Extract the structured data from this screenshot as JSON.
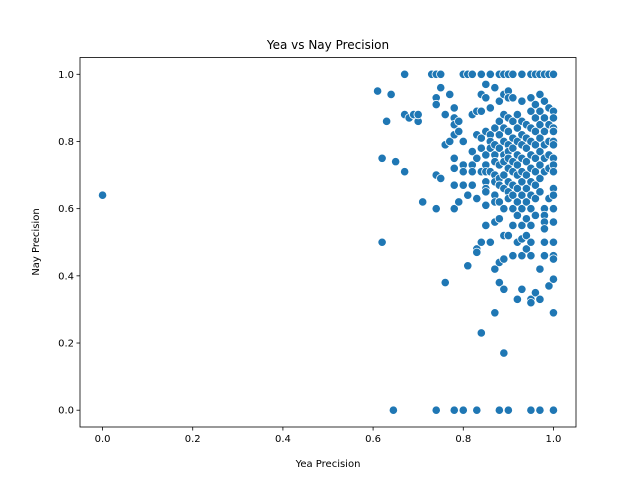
{
  "chart_data": {
    "type": "scatter",
    "title": "Yea vs Nay Precision",
    "xlabel": "Yea Precision",
    "ylabel": "Nay Precision",
    "xlim": [
      -0.05,
      1.05
    ],
    "ylim": [
      -0.05,
      1.05
    ],
    "xticks": [
      0.0,
      0.2,
      0.4,
      0.6,
      0.8,
      1.0
    ],
    "yticks": [
      0.0,
      0.2,
      0.4,
      0.6,
      0.8,
      1.0
    ],
    "xtick_labels": [
      "0.0",
      "0.2",
      "0.4",
      "0.6",
      "0.8",
      "1.0"
    ],
    "ytick_labels": [
      "0.0",
      "0.2",
      "0.4",
      "0.6",
      "0.8",
      "1.0"
    ],
    "grid": false,
    "marker_color": "#1f77b4",
    "marker_edge_color": "#ffffff",
    "series": [
      {
        "points": [
          [
            0.0,
            0.64
          ],
          [
            0.61,
            0.95
          ],
          [
            0.62,
            0.75
          ],
          [
            0.62,
            0.5
          ],
          [
            0.63,
            0.86
          ],
          [
            0.64,
            0.94
          ],
          [
            0.645,
            0.0
          ],
          [
            0.65,
            0.74
          ],
          [
            0.67,
            1.0
          ],
          [
            0.67,
            0.88
          ],
          [
            0.67,
            0.71
          ],
          [
            0.68,
            0.87
          ],
          [
            0.69,
            0.88
          ],
          [
            0.7,
            0.86
          ],
          [
            0.7,
            0.88
          ],
          [
            0.71,
            0.62
          ],
          [
            0.73,
            1.0
          ],
          [
            0.74,
            1.0
          ],
          [
            0.74,
            0.93
          ],
          [
            0.74,
            0.91
          ],
          [
            0.74,
            0.7
          ],
          [
            0.74,
            0.6
          ],
          [
            0.74,
            0.0
          ],
          [
            0.75,
            1.0
          ],
          [
            0.75,
            0.96
          ],
          [
            0.75,
            0.69
          ],
          [
            0.76,
            0.88
          ],
          [
            0.76,
            0.79
          ],
          [
            0.76,
            0.38
          ],
          [
            0.77,
            0.94
          ],
          [
            0.77,
            0.8
          ],
          [
            0.78,
            0.9
          ],
          [
            0.78,
            0.87
          ],
          [
            0.78,
            0.85
          ],
          [
            0.78,
            0.82
          ],
          [
            0.78,
            0.75
          ],
          [
            0.78,
            0.72
          ],
          [
            0.78,
            0.67
          ],
          [
            0.78,
            0.6
          ],
          [
            0.78,
            0.0
          ],
          [
            0.79,
            0.86
          ],
          [
            0.79,
            0.83
          ],
          [
            0.79,
            0.62
          ],
          [
            0.8,
            1.0
          ],
          [
            0.8,
            0.8
          ],
          [
            0.8,
            0.73
          ],
          [
            0.8,
            0.71
          ],
          [
            0.8,
            0.67
          ],
          [
            0.8,
            0.0
          ],
          [
            0.81,
            1.0
          ],
          [
            0.81,
            0.64
          ],
          [
            0.81,
            0.43
          ],
          [
            0.82,
            1.0
          ],
          [
            0.82,
            0.88
          ],
          [
            0.82,
            0.77
          ],
          [
            0.82,
            0.73
          ],
          [
            0.82,
            0.71
          ],
          [
            0.82,
            0.67
          ],
          [
            0.83,
            0.89
          ],
          [
            0.83,
            0.82
          ],
          [
            0.83,
            0.75
          ],
          [
            0.83,
            0.63
          ],
          [
            0.83,
            0.48
          ],
          [
            0.83,
            0.47
          ],
          [
            0.83,
            0.0
          ],
          [
            0.84,
            1.0
          ],
          [
            0.84,
            0.94
          ],
          [
            0.84,
            0.89
          ],
          [
            0.84,
            0.81
          ],
          [
            0.84,
            0.78
          ],
          [
            0.84,
            0.71
          ],
          [
            0.84,
            0.5
          ],
          [
            0.84,
            0.23
          ],
          [
            0.85,
            0.97
          ],
          [
            0.85,
            0.93
          ],
          [
            0.85,
            0.83
          ],
          [
            0.85,
            0.76
          ],
          [
            0.85,
            0.73
          ],
          [
            0.85,
            0.71
          ],
          [
            0.85,
            0.68
          ],
          [
            0.85,
            0.66
          ],
          [
            0.85,
            0.65
          ],
          [
            0.85,
            0.61
          ],
          [
            0.85,
            0.55
          ],
          [
            0.86,
            1.0
          ],
          [
            0.86,
            0.9
          ],
          [
            0.86,
            0.82
          ],
          [
            0.86,
            0.8
          ],
          [
            0.86,
            0.78
          ],
          [
            0.86,
            0.71
          ],
          [
            0.86,
            0.5
          ],
          [
            0.87,
            0.96
          ],
          [
            0.87,
            0.84
          ],
          [
            0.87,
            0.79
          ],
          [
            0.87,
            0.76
          ],
          [
            0.87,
            0.74
          ],
          [
            0.87,
            0.7
          ],
          [
            0.87,
            0.68
          ],
          [
            0.87,
            0.64
          ],
          [
            0.87,
            0.62
          ],
          [
            0.87,
            0.56
          ],
          [
            0.87,
            0.42
          ],
          [
            0.87,
            0.29
          ],
          [
            0.88,
            1.0
          ],
          [
            0.88,
            0.92
          ],
          [
            0.88,
            0.86
          ],
          [
            0.88,
            0.82
          ],
          [
            0.88,
            0.78
          ],
          [
            0.88,
            0.73
          ],
          [
            0.88,
            0.69
          ],
          [
            0.88,
            0.67
          ],
          [
            0.88,
            0.62
          ],
          [
            0.88,
            0.57
          ],
          [
            0.88,
            0.44
          ],
          [
            0.88,
            0.38
          ],
          [
            0.88,
            0.0
          ],
          [
            0.89,
            1.0
          ],
          [
            0.89,
            0.94
          ],
          [
            0.89,
            0.88
          ],
          [
            0.89,
            0.84
          ],
          [
            0.89,
            0.8
          ],
          [
            0.89,
            0.76
          ],
          [
            0.89,
            0.74
          ],
          [
            0.89,
            0.7
          ],
          [
            0.89,
            0.66
          ],
          [
            0.89,
            0.6
          ],
          [
            0.89,
            0.52
          ],
          [
            0.89,
            0.45
          ],
          [
            0.89,
            0.36
          ],
          [
            0.89,
            0.17
          ],
          [
            0.9,
            1.0
          ],
          [
            0.9,
            0.95
          ],
          [
            0.9,
            0.93
          ],
          [
            0.9,
            0.87
          ],
          [
            0.9,
            0.83
          ],
          [
            0.9,
            0.79
          ],
          [
            0.9,
            0.77
          ],
          [
            0.9,
            0.75
          ],
          [
            0.9,
            0.72
          ],
          [
            0.9,
            0.68
          ],
          [
            0.9,
            0.65
          ],
          [
            0.9,
            0.63
          ],
          [
            0.9,
            0.52
          ],
          [
            0.9,
            0.0
          ],
          [
            0.91,
            1.0
          ],
          [
            0.91,
            0.93
          ],
          [
            0.91,
            0.86
          ],
          [
            0.91,
            0.81
          ],
          [
            0.91,
            0.78
          ],
          [
            0.91,
            0.74
          ],
          [
            0.91,
            0.71
          ],
          [
            0.91,
            0.67
          ],
          [
            0.91,
            0.64
          ],
          [
            0.91,
            0.6
          ],
          [
            0.91,
            0.55
          ],
          [
            0.91,
            0.46
          ],
          [
            0.92,
            0.88
          ],
          [
            0.92,
            0.84
          ],
          [
            0.92,
            0.8
          ],
          [
            0.92,
            0.76
          ],
          [
            0.92,
            0.73
          ],
          [
            0.92,
            0.7
          ],
          [
            0.92,
            0.66
          ],
          [
            0.92,
            0.62
          ],
          [
            0.92,
            0.58
          ],
          [
            0.92,
            0.5
          ],
          [
            0.92,
            0.33
          ],
          [
            0.93,
            1.0
          ],
          [
            0.93,
            0.92
          ],
          [
            0.93,
            0.86
          ],
          [
            0.93,
            0.82
          ],
          [
            0.93,
            0.79
          ],
          [
            0.93,
            0.75
          ],
          [
            0.93,
            0.71
          ],
          [
            0.93,
            0.68
          ],
          [
            0.93,
            0.64
          ],
          [
            0.93,
            0.6
          ],
          [
            0.93,
            0.55
          ],
          [
            0.93,
            0.51
          ],
          [
            0.93,
            0.46
          ],
          [
            0.93,
            0.36
          ],
          [
            0.94,
            0.85
          ],
          [
            0.94,
            0.81
          ],
          [
            0.94,
            0.78
          ],
          [
            0.94,
            0.74
          ],
          [
            0.94,
            0.7
          ],
          [
            0.94,
            0.66
          ],
          [
            0.94,
            0.62
          ],
          [
            0.94,
            0.57
          ],
          [
            0.94,
            0.52
          ],
          [
            0.94,
            0.48
          ],
          [
            0.95,
            1.0
          ],
          [
            0.95,
            0.93
          ],
          [
            0.95,
            0.89
          ],
          [
            0.95,
            0.84
          ],
          [
            0.95,
            0.8
          ],
          [
            0.95,
            0.76
          ],
          [
            0.95,
            0.72
          ],
          [
            0.95,
            0.68
          ],
          [
            0.95,
            0.64
          ],
          [
            0.95,
            0.6
          ],
          [
            0.95,
            0.55
          ],
          [
            0.95,
            0.5
          ],
          [
            0.95,
            0.46
          ],
          [
            0.95,
            0.33
          ],
          [
            0.95,
            0.32
          ],
          [
            0.95,
            0.0
          ],
          [
            0.96,
            1.0
          ],
          [
            0.96,
            0.91
          ],
          [
            0.96,
            0.87
          ],
          [
            0.96,
            0.83
          ],
          [
            0.96,
            0.79
          ],
          [
            0.96,
            0.75
          ],
          [
            0.96,
            0.71
          ],
          [
            0.96,
            0.67
          ],
          [
            0.96,
            0.63
          ],
          [
            0.96,
            0.58
          ],
          [
            0.96,
            0.35
          ],
          [
            0.97,
            1.0
          ],
          [
            0.97,
            0.94
          ],
          [
            0.97,
            0.89
          ],
          [
            0.97,
            0.85
          ],
          [
            0.97,
            0.81
          ],
          [
            0.97,
            0.77
          ],
          [
            0.97,
            0.73
          ],
          [
            0.97,
            0.69
          ],
          [
            0.97,
            0.65
          ],
          [
            0.97,
            0.42
          ],
          [
            0.97,
            0.33
          ],
          [
            0.97,
            0.0
          ],
          [
            0.98,
            1.0
          ],
          [
            0.98,
            0.92
          ],
          [
            0.98,
            0.87
          ],
          [
            0.98,
            0.83
          ],
          [
            0.98,
            0.79
          ],
          [
            0.98,
            0.75
          ],
          [
            0.98,
            0.71
          ],
          [
            0.98,
            0.6
          ],
          [
            0.98,
            0.58
          ],
          [
            0.98,
            0.56
          ],
          [
            0.98,
            0.54
          ],
          [
            0.98,
            0.5
          ],
          [
            0.98,
            0.46
          ],
          [
            0.99,
            1.0
          ],
          [
            0.99,
            0.9
          ],
          [
            0.99,
            0.85
          ],
          [
            0.99,
            0.8
          ],
          [
            0.99,
            0.76
          ],
          [
            0.99,
            0.72
          ],
          [
            0.99,
            0.63
          ],
          [
            0.99,
            0.37
          ],
          [
            1.0,
            1.0
          ],
          [
            1.0,
            0.89
          ],
          [
            1.0,
            0.87
          ],
          [
            1.0,
            0.84
          ],
          [
            1.0,
            0.83
          ],
          [
            1.0,
            0.8
          ],
          [
            1.0,
            0.79
          ],
          [
            1.0,
            0.75
          ],
          [
            1.0,
            0.73
          ],
          [
            1.0,
            0.71
          ],
          [
            1.0,
            0.66
          ],
          [
            1.0,
            0.64
          ],
          [
            1.0,
            0.6
          ],
          [
            1.0,
            0.56
          ],
          [
            1.0,
            0.5
          ],
          [
            1.0,
            0.46
          ],
          [
            1.0,
            0.45
          ],
          [
            1.0,
            0.39
          ],
          [
            1.0,
            0.29
          ],
          [
            1.0,
            0.0
          ]
        ]
      }
    ]
  }
}
